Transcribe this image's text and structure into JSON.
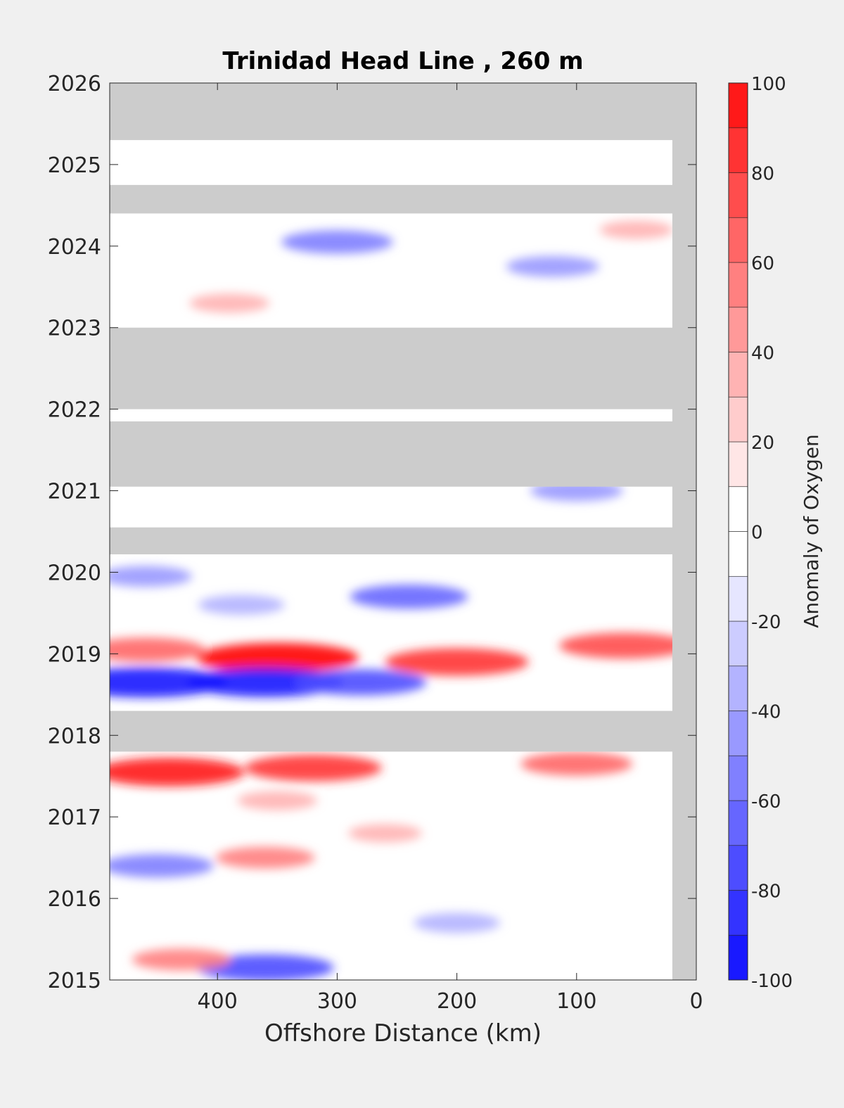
{
  "chart_data": {
    "type": "heatmap",
    "title": "Trinidad Head Line , 260 m",
    "xlabel": "Offshore Distance (km)",
    "ylabel": "",
    "colorbar_label": "Anomaly of Oxygen",
    "x_axis": {
      "range": [
        490,
        0
      ],
      "reversed": true,
      "ticks": [
        400,
        300,
        200,
        100,
        0
      ]
    },
    "y_axis": {
      "range": [
        2015,
        2026
      ],
      "ticks": [
        2015,
        2016,
        2017,
        2018,
        2019,
        2020,
        2021,
        2022,
        2023,
        2024,
        2025,
        2026
      ]
    },
    "colorbar": {
      "range": [
        -100,
        100
      ],
      "ticks": [
        -100,
        -80,
        -60,
        -40,
        -20,
        0,
        20,
        40,
        60,
        80,
        100
      ],
      "step": 10
    },
    "colors": {
      "no_data": "#cccccc",
      "negative": "#0000ff",
      "zero": "#ffffff",
      "positive": "#ff0000"
    },
    "data_coverage_x": [
      490,
      20
    ],
    "no_data_bands": [
      {
        "year": [
          2025.3,
          2026
        ],
        "x": [
          490,
          0
        ]
      },
      {
        "year": [
          2024.4,
          2024.75
        ],
        "x": [
          490,
          0
        ]
      },
      {
        "year": [
          2023.0,
          2022.0
        ],
        "x": [
          490,
          0
        ]
      },
      {
        "year": [
          2021.05,
          2021.85
        ],
        "x": [
          490,
          0
        ]
      },
      {
        "year": [
          2020.22,
          2020.55
        ],
        "x": [
          490,
          0
        ]
      },
      {
        "year": [
          2017.8,
          2018.3
        ],
        "x": [
          490,
          0
        ]
      },
      {
        "year": [
          2015,
          2026
        ],
        "x": [
          20,
          0
        ]
      }
    ],
    "features": [
      {
        "year": 2024.05,
        "x": 300,
        "value": -55
      },
      {
        "year": 2023.75,
        "x": 120,
        "value": -40
      },
      {
        "year": 2024.2,
        "x": 50,
        "value": 25
      },
      {
        "year": 2023.3,
        "x": 390,
        "value": 30
      },
      {
        "year": 2021.0,
        "x": 100,
        "value": -40
      },
      {
        "year": 2019.95,
        "x": 460,
        "value": -40
      },
      {
        "year": 2019.7,
        "x": 240,
        "value": -60
      },
      {
        "year": 2019.6,
        "x": 380,
        "value": -35
      },
      {
        "year": 2018.95,
        "x": 350,
        "value": 95
      },
      {
        "year": 2018.9,
        "x": 200,
        "value": 80
      },
      {
        "year": 2019.05,
        "x": 460,
        "value": 60
      },
      {
        "year": 2019.1,
        "x": 60,
        "value": 70
      },
      {
        "year": 2018.65,
        "x": 460,
        "value": -95
      },
      {
        "year": 2018.65,
        "x": 360,
        "value": -90
      },
      {
        "year": 2018.65,
        "x": 280,
        "value": -70
      },
      {
        "year": 2017.55,
        "x": 440,
        "value": 85
      },
      {
        "year": 2017.6,
        "x": 320,
        "value": 75
      },
      {
        "year": 2017.65,
        "x": 100,
        "value": 55
      },
      {
        "year": 2017.2,
        "x": 350,
        "value": 30
      },
      {
        "year": 2016.8,
        "x": 260,
        "value": 25
      },
      {
        "year": 2016.4,
        "x": 450,
        "value": -55
      },
      {
        "year": 2016.5,
        "x": 360,
        "value": 45
      },
      {
        "year": 2015.15,
        "x": 360,
        "value": -75
      },
      {
        "year": 2015.25,
        "x": 430,
        "value": 45
      },
      {
        "year": 2015.7,
        "x": 200,
        "value": -35
      }
    ]
  }
}
